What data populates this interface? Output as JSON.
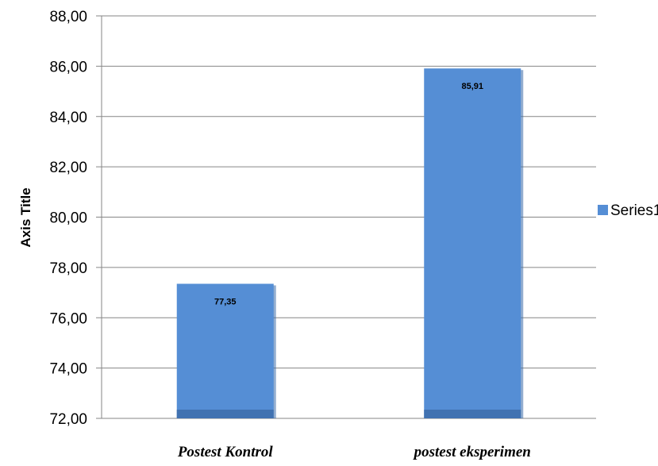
{
  "chart_data": {
    "type": "bar",
    "categories": [
      "Postest Kontrol",
      "postest eksperimen"
    ],
    "series": [
      {
        "name": "Series1",
        "values": [
          77.35,
          85.91
        ],
        "color": "#558ed5"
      }
    ],
    "data_labels": [
      "77,35",
      "85,91"
    ],
    "ylabel": "Axis Title",
    "xlabel": "",
    "ylim": [
      72,
      88
    ],
    "yticks": [
      72,
      74,
      76,
      78,
      80,
      82,
      84,
      86,
      88
    ],
    "ytick_labels": [
      "72,00",
      "74,00",
      "76,00",
      "78,00",
      "80,00",
      "82,00",
      "84,00",
      "86,00",
      "88,00"
    ],
    "grid": true,
    "legend": {
      "placement": "right",
      "entries": [
        "Series1"
      ]
    }
  }
}
